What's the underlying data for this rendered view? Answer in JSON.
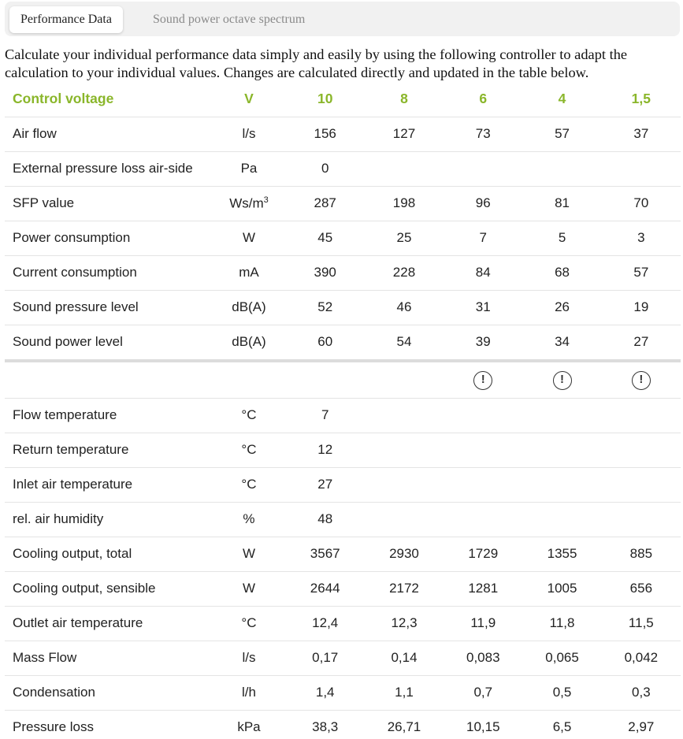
{
  "tabs": [
    {
      "label": "Performance Data"
    },
    {
      "label": "Sound power octave spectrum"
    }
  ],
  "intro": "Calculate your individual performance data simply and easily by using the following controller to adapt the calculation to your individual values. Changes are calculated directly and updated in the table below.",
  "perf": {
    "header": {
      "label": "Control voltage",
      "unit": "V",
      "values": [
        "10",
        "8",
        "6",
        "4",
        "1,5"
      ]
    },
    "rows": [
      {
        "label": "Air flow",
        "unit": "l/s",
        "values": [
          "156",
          "127",
          "73",
          "57",
          "37"
        ]
      },
      {
        "label": "External pressure loss air-side",
        "unit": "Pa",
        "values": [
          "0",
          "",
          "",
          "",
          ""
        ]
      },
      {
        "label": "SFP value",
        "unit": "Ws/m",
        "unit_sup": "3",
        "values": [
          "287",
          "198",
          "96",
          "81",
          "70"
        ]
      },
      {
        "label": "Power consumption",
        "unit": "W",
        "values": [
          "45",
          "25",
          "7",
          "5",
          "3"
        ]
      },
      {
        "label": "Current consumption",
        "unit": "mA",
        "values": [
          "390",
          "228",
          "84",
          "68",
          "57"
        ]
      },
      {
        "label": "Sound pressure level",
        "unit": "dB(A)",
        "values": [
          "52",
          "46",
          "31",
          "26",
          "19"
        ]
      },
      {
        "label": "Sound power level",
        "unit": "dB(A)",
        "values": [
          "60",
          "54",
          "39",
          "34",
          "27"
        ]
      }
    ]
  },
  "warning_icon": "!",
  "cooling": {
    "rows": [
      {
        "label": "Flow temperature",
        "unit": "°C",
        "values": [
          "7",
          "",
          "",
          "",
          ""
        ]
      },
      {
        "label": "Return temperature",
        "unit": "°C",
        "values": [
          "12",
          "",
          "",
          "",
          ""
        ]
      },
      {
        "label": "Inlet air temperature",
        "unit": "°C",
        "values": [
          "27",
          "",
          "",
          "",
          ""
        ]
      },
      {
        "label": "rel. air humidity",
        "unit": "%",
        "values": [
          "48",
          "",
          "",
          "",
          ""
        ]
      },
      {
        "label": "Cooling output, total",
        "unit": "W",
        "values": [
          "3567",
          "2930",
          "1729",
          "1355",
          "885"
        ]
      },
      {
        "label": "Cooling output, sensible",
        "unit": "W",
        "values": [
          "2644",
          "2172",
          "1281",
          "1005",
          "656"
        ]
      },
      {
        "label": "Outlet air temperature",
        "unit": "°C",
        "values": [
          "12,4",
          "12,3",
          "11,9",
          "11,8",
          "11,5"
        ]
      },
      {
        "label": "Mass Flow",
        "unit": "l/s",
        "values": [
          "0,17",
          "0,14",
          "0,083",
          "0,065",
          "0,042"
        ]
      },
      {
        "label": "Condensation",
        "unit": "l/h",
        "values": [
          "1,4",
          "1,1",
          "0,7",
          "0,5",
          "0,3"
        ]
      },
      {
        "label": "Pressure loss",
        "unit": "kPa",
        "values": [
          "38,3",
          "26,71",
          "10,15",
          "6,5",
          "2,97"
        ]
      }
    ]
  }
}
